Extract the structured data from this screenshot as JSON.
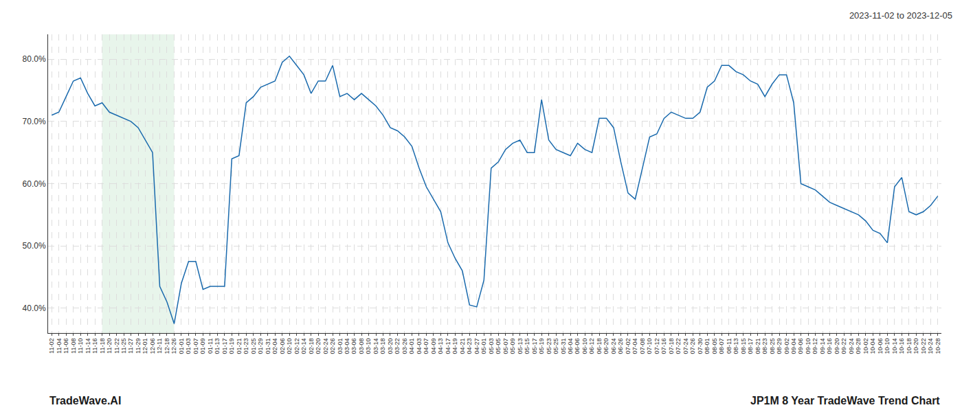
{
  "chart_data": {
    "type": "line",
    "title": "2023-11-02 to 2023-12-05",
    "annotations": [
      "TradeWave.AI",
      "JP1M 8 Year TradeWave Trend Chart"
    ],
    "categories": [
      "11-02",
      "11-04",
      "11-06",
      "11-08",
      "11-10",
      "11-14",
      "11-16",
      "11-18",
      "11-20",
      "11-22",
      "11-25",
      "11-27",
      "11-29",
      "12-01",
      "12-06",
      "12-11",
      "12-18",
      "12-26",
      "01-01",
      "01-03",
      "01-07",
      "01-09",
      "01-11",
      "01-13",
      "01-17",
      "01-19",
      "01-21",
      "01-23",
      "01-25",
      "01-29",
      "01-31",
      "02-04",
      "02-06",
      "02-10",
      "02-12",
      "02-14",
      "02-18",
      "02-20",
      "02-24",
      "02-26",
      "03-01",
      "03-04",
      "03-06",
      "03-08",
      "03-10",
      "03-14",
      "03-18",
      "03-20",
      "03-22",
      "03-26",
      "04-01",
      "04-03",
      "04-07",
      "04-09",
      "04-13",
      "04-17",
      "04-19",
      "04-21",
      "04-23",
      "04-27",
      "05-01",
      "05-03",
      "05-05",
      "05-07",
      "05-09",
      "05-13",
      "05-15",
      "05-17",
      "05-19",
      "05-23",
      "05-25",
      "05-31",
      "06-04",
      "06-06",
      "06-10",
      "06-12",
      "06-18",
      "06-20",
      "06-24",
      "06-26",
      "07-02",
      "07-04",
      "07-08",
      "07-10",
      "07-12",
      "07-16",
      "07-18",
      "07-22",
      "07-24",
      "07-26",
      "07-30",
      "08-01",
      "08-05",
      "08-07",
      "08-11",
      "08-13",
      "08-15",
      "08-17",
      "08-21",
      "08-23",
      "08-25",
      "08-29",
      "09-02",
      "09-04",
      "09-06",
      "09-10",
      "09-12",
      "09-14",
      "09-16",
      "09-20",
      "09-22",
      "09-24",
      "09-28",
      "10-02",
      "10-04",
      "10-06",
      "10-10",
      "10-14",
      "10-16",
      "10-18",
      "10-20",
      "10-22",
      "10-24",
      "10-28"
    ],
    "values": [
      71.0,
      71.5,
      74.0,
      76.5,
      77.0,
      74.5,
      72.5,
      73.0,
      71.5,
      71.0,
      70.5,
      70.0,
      69.0,
      67.0,
      65.0,
      43.5,
      41.0,
      37.5,
      44.0,
      47.5,
      47.5,
      43.0,
      43.5,
      43.5,
      43.5,
      64.0,
      64.5,
      73.0,
      74.0,
      75.5,
      76.0,
      76.5,
      79.5,
      80.5,
      79.0,
      77.5,
      74.5,
      76.5,
      76.5,
      79.0,
      74.0,
      74.5,
      73.5,
      74.5,
      73.5,
      72.5,
      71.0,
      69.0,
      68.5,
      67.5,
      66.0,
      62.5,
      59.5,
      57.5,
      55.5,
      50.5,
      48.0,
      46.0,
      40.5,
      40.2,
      44.5,
      62.5,
      63.5,
      65.5,
      66.5,
      67.0,
      65.0,
      65.0,
      73.5,
      67.0,
      65.5,
      65.0,
      64.5,
      66.5,
      65.5,
      65.0,
      70.5,
      70.5,
      69.0,
      63.5,
      58.5,
      57.5,
      62.5,
      67.5,
      68.0,
      70.5,
      71.5,
      71.0,
      70.5,
      70.5,
      71.5,
      75.5,
      76.5,
      79.0,
      79.0,
      78.0,
      77.5,
      76.5,
      76.0,
      74.0,
      76.0,
      77.5,
      77.5,
      73.0,
      60.0,
      59.5,
      59.0,
      58.0,
      57.0,
      56.5,
      56.0,
      55.5,
      55.0,
      54.0,
      52.5,
      52.0,
      50.5,
      59.5,
      61.0,
      55.5,
      55.0,
      55.5,
      56.5,
      58.0
    ],
    "color": "#1a6aad",
    "ylim": [
      36,
      84
    ],
    "yticks": [
      {
        "value": 40,
        "label": "40.0%"
      },
      {
        "value": 50,
        "label": "50.0%"
      },
      {
        "value": 60,
        "label": "60.0%"
      },
      {
        "value": 70,
        "label": "70.0%"
      },
      {
        "value": 80,
        "label": "80.0%"
      }
    ],
    "grid": true,
    "shaded_range": {
      "from": "11-18",
      "to": "12-26",
      "color": "#d6edda"
    }
  }
}
